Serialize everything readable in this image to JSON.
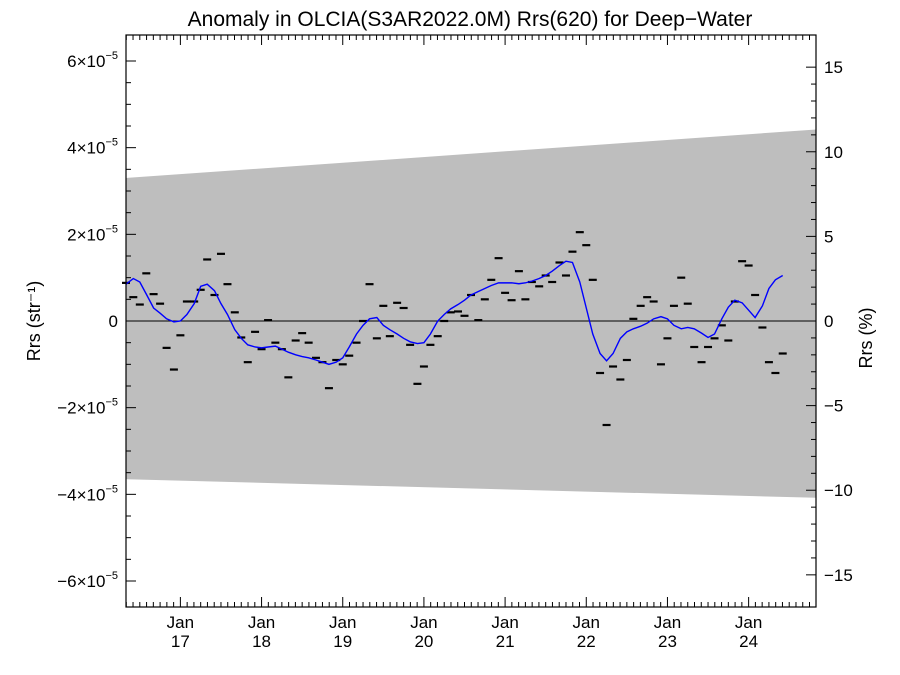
{
  "chart_data": {
    "type": "scatter",
    "title": "Anomaly in OLCIA(S3AR2022.0M) Rrs(620) for Deep−Water",
    "ylabel_left": "Rrs (str⁻¹)",
    "ylabel_right": "Rrs (%)",
    "xlim": [
      2016.33,
      2024.83
    ],
    "ylim": [
      -6.6e-05,
      6.6e-05
    ],
    "ylim_right": [
      -16.9,
      16.9
    ],
    "x_ticks": [
      {
        "x": 2017.0,
        "line1": "Jan",
        "line2": "17"
      },
      {
        "x": 2018.0,
        "line1": "Jan",
        "line2": "18"
      },
      {
        "x": 2019.0,
        "line1": "Jan",
        "line2": "19"
      },
      {
        "x": 2020.0,
        "line1": "Jan",
        "line2": "20"
      },
      {
        "x": 2021.0,
        "line1": "Jan",
        "line2": "21"
      },
      {
        "x": 2022.0,
        "line1": "Jan",
        "line2": "22"
      },
      {
        "x": 2023.0,
        "line1": "Jan",
        "line2": "23"
      },
      {
        "x": 2024.0,
        "line1": "Jan",
        "line2": "24"
      }
    ],
    "y_ticks_left": [
      {
        "value": 6e-05,
        "mant": "6×10",
        "exp": "−5"
      },
      {
        "value": 4e-05,
        "mant": "4×10",
        "exp": "−5"
      },
      {
        "value": 2e-05,
        "mant": "2×10",
        "exp": "−5"
      },
      {
        "value": 0,
        "mant": "0",
        "exp": ""
      },
      {
        "value": -2e-05,
        "mant": "−2×10",
        "exp": "−5"
      },
      {
        "value": -4e-05,
        "mant": "−4×10",
        "exp": "−5"
      },
      {
        "value": -6e-05,
        "mant": "−6×10",
        "exp": "−5"
      }
    ],
    "y_ticks_right": [
      {
        "value": 15,
        "label": "15"
      },
      {
        "value": 10,
        "label": "10"
      },
      {
        "value": 5,
        "label": "5"
      },
      {
        "value": 0,
        "label": "0"
      },
      {
        "value": -5,
        "label": "−5"
      },
      {
        "value": -10,
        "label": "−10"
      },
      {
        "value": -15,
        "label": "−15"
      }
    ],
    "band": {
      "color": "#bebebe",
      "upper": [
        [
          2016.33,
          3.3e-05
        ],
        [
          2024.83,
          4.42e-05
        ]
      ],
      "lower": [
        [
          2016.33,
          -3.65e-05
        ],
        [
          2024.83,
          -4.08e-05
        ]
      ]
    },
    "zero_line": true,
    "series": [
      {
        "kind": "markers",
        "marker": "dash",
        "color": "#000000",
        "points": [
          [
            2016.33,
            8.8e-06
          ],
          [
            2016.42,
            5.5e-06
          ],
          [
            2016.5,
            3.8e-06
          ],
          [
            2016.58,
            1.1e-05
          ],
          [
            2016.67,
            6.2e-06
          ],
          [
            2016.75,
            4e-06
          ],
          [
            2016.83,
            -6.2e-06
          ],
          [
            2016.92,
            -1.12e-05
          ],
          [
            2017.0,
            -3.3e-06
          ],
          [
            2017.08,
            4.5e-06
          ],
          [
            2017.17,
            4.5e-06
          ],
          [
            2017.25,
            7.2e-06
          ],
          [
            2017.33,
            1.42e-05
          ],
          [
            2017.42,
            6e-06
          ],
          [
            2017.5,
            1.55e-05
          ],
          [
            2017.58,
            8.5e-06
          ],
          [
            2017.67,
            2e-06
          ],
          [
            2017.75,
            -3.8e-06
          ],
          [
            2017.83,
            -9.5e-06
          ],
          [
            2017.92,
            -2.5e-06
          ],
          [
            2018.0,
            -6.5e-06
          ],
          [
            2018.08,
            2e-07
          ],
          [
            2018.17,
            -5e-06
          ],
          [
            2018.25,
            -6.5e-06
          ],
          [
            2018.33,
            -1.3e-05
          ],
          [
            2018.42,
            -4.5e-06
          ],
          [
            2018.5,
            -2.8e-06
          ],
          [
            2018.58,
            -5e-06
          ],
          [
            2018.67,
            -8.5e-06
          ],
          [
            2018.75,
            -9.5e-06
          ],
          [
            2018.83,
            -1.55e-05
          ],
          [
            2018.92,
            -9e-06
          ],
          [
            2019.0,
            -1e-05
          ],
          [
            2019.08,
            -8e-06
          ],
          [
            2019.17,
            -5e-06
          ],
          [
            2019.25,
            0.0
          ],
          [
            2019.33,
            8.5e-06
          ],
          [
            2019.42,
            -4e-06
          ],
          [
            2019.5,
            3.5e-06
          ],
          [
            2019.58,
            -3.5e-06
          ],
          [
            2019.67,
            4.2e-06
          ],
          [
            2019.75,
            3e-06
          ],
          [
            2019.83,
            -5.5e-06
          ],
          [
            2019.92,
            -1.45e-05
          ],
          [
            2020.0,
            -1.05e-05
          ],
          [
            2020.08,
            -5.5e-06
          ],
          [
            2020.17,
            -3.5e-06
          ],
          [
            2020.25,
            0.0
          ],
          [
            2020.33,
            2e-06
          ],
          [
            2020.42,
            2.2e-06
          ],
          [
            2020.5,
            1.2e-06
          ],
          [
            2020.58,
            6e-06
          ],
          [
            2020.67,
            2e-07
          ],
          [
            2020.75,
            5e-06
          ],
          [
            2020.83,
            9.5e-06
          ],
          [
            2020.92,
            1.45e-05
          ],
          [
            2021.0,
            6.5e-06
          ],
          [
            2021.08,
            4.8e-06
          ],
          [
            2021.17,
            1.15e-05
          ],
          [
            2021.25,
            5e-06
          ],
          [
            2021.33,
            9e-06
          ],
          [
            2021.42,
            8e-06
          ],
          [
            2021.5,
            1.05e-05
          ],
          [
            2021.58,
            9e-06
          ],
          [
            2021.67,
            1.35e-05
          ],
          [
            2021.75,
            1.05e-05
          ],
          [
            2021.83,
            1.6e-05
          ],
          [
            2021.92,
            2.05e-05
          ],
          [
            2022.0,
            1.75e-05
          ],
          [
            2022.08,
            9.5e-06
          ],
          [
            2022.17,
            -1.2e-05
          ],
          [
            2022.25,
            -2.4e-05
          ],
          [
            2022.33,
            -1.05e-05
          ],
          [
            2022.42,
            -1.35e-05
          ],
          [
            2022.5,
            -9e-06
          ],
          [
            2022.58,
            5e-07
          ],
          [
            2022.67,
            3.5e-06
          ],
          [
            2022.75,
            5.5e-06
          ],
          [
            2022.83,
            4.5e-06
          ],
          [
            2022.92,
            -1e-05
          ],
          [
            2023.0,
            -4e-06
          ],
          [
            2023.08,
            3.5e-06
          ],
          [
            2023.17,
            1e-05
          ],
          [
            2023.25,
            4e-06
          ],
          [
            2023.33,
            -6e-06
          ],
          [
            2023.42,
            -9.5e-06
          ],
          [
            2023.5,
            -6e-06
          ],
          [
            2023.58,
            -4e-06
          ],
          [
            2023.67,
            -1e-06
          ],
          [
            2023.75,
            -4.5e-06
          ],
          [
            2023.83,
            4.5e-06
          ],
          [
            2023.92,
            1.38e-05
          ],
          [
            2024.0,
            1.28e-05
          ],
          [
            2024.08,
            6e-06
          ],
          [
            2024.17,
            -1.5e-06
          ],
          [
            2024.25,
            -9.5e-06
          ],
          [
            2024.33,
            -1.2e-05
          ],
          [
            2024.42,
            -7.5e-06
          ]
        ]
      },
      {
        "kind": "line",
        "color": "#0000ff",
        "points": [
          [
            2016.33,
            8.5e-06
          ],
          [
            2016.42,
            9.8e-06
          ],
          [
            2016.5,
            9e-06
          ],
          [
            2016.58,
            6.2e-06
          ],
          [
            2016.67,
            3e-06
          ],
          [
            2016.75,
            1.8e-06
          ],
          [
            2016.83,
            5e-07
          ],
          [
            2016.92,
            -2e-07
          ],
          [
            2017.0,
            0.0
          ],
          [
            2017.08,
            1.5e-06
          ],
          [
            2017.17,
            4e-06
          ],
          [
            2017.25,
            8e-06
          ],
          [
            2017.33,
            8.5e-06
          ],
          [
            2017.42,
            7e-06
          ],
          [
            2017.5,
            4e-06
          ],
          [
            2017.58,
            1.5e-06
          ],
          [
            2017.67,
            -2e-06
          ],
          [
            2017.75,
            -4e-06
          ],
          [
            2017.83,
            -5.5e-06
          ],
          [
            2017.92,
            -6e-06
          ],
          [
            2018.0,
            -6.2e-06
          ],
          [
            2018.08,
            -6e-06
          ],
          [
            2018.17,
            -5.8e-06
          ],
          [
            2018.25,
            -6.5e-06
          ],
          [
            2018.33,
            -7.2e-06
          ],
          [
            2018.42,
            -7.8e-06
          ],
          [
            2018.5,
            -8.2e-06
          ],
          [
            2018.58,
            -8.5e-06
          ],
          [
            2018.67,
            -9e-06
          ],
          [
            2018.75,
            -9.5e-06
          ],
          [
            2018.83,
            -1e-05
          ],
          [
            2018.92,
            -9.5e-06
          ],
          [
            2019.0,
            -8.5e-06
          ],
          [
            2019.08,
            -6e-06
          ],
          [
            2019.17,
            -3e-06
          ],
          [
            2019.25,
            -1e-06
          ],
          [
            2019.33,
            5e-07
          ],
          [
            2019.42,
            8e-07
          ],
          [
            2019.5,
            -1e-06
          ],
          [
            2019.58,
            -2e-06
          ],
          [
            2019.67,
            -3e-06
          ],
          [
            2019.75,
            -4e-06
          ],
          [
            2019.83,
            -4.8e-06
          ],
          [
            2019.92,
            -5.2e-06
          ],
          [
            2020.0,
            -5e-06
          ],
          [
            2020.08,
            -3e-06
          ],
          [
            2020.17,
            0.0
          ],
          [
            2020.25,
            1.5e-06
          ],
          [
            2020.33,
            2.8e-06
          ],
          [
            2020.42,
            3.8e-06
          ],
          [
            2020.5,
            4.8e-06
          ],
          [
            2020.58,
            6e-06
          ],
          [
            2020.67,
            6.8e-06
          ],
          [
            2020.75,
            7.5e-06
          ],
          [
            2020.83,
            8.2e-06
          ],
          [
            2020.92,
            8.8e-06
          ],
          [
            2021.0,
            8.8e-06
          ],
          [
            2021.08,
            8.8e-06
          ],
          [
            2021.17,
            8.6e-06
          ],
          [
            2021.25,
            8.8e-06
          ],
          [
            2021.33,
            9.2e-06
          ],
          [
            2021.42,
            9.8e-06
          ],
          [
            2021.5,
            1.05e-05
          ],
          [
            2021.58,
            1.15e-05
          ],
          [
            2021.67,
            1.28e-05
          ],
          [
            2021.75,
            1.38e-05
          ],
          [
            2021.83,
            1.35e-05
          ],
          [
            2021.92,
            9e-06
          ],
          [
            2022.0,
            3e-06
          ],
          [
            2022.08,
            -3e-06
          ],
          [
            2022.17,
            -7.5e-06
          ],
          [
            2022.25,
            -9.2e-06
          ],
          [
            2022.33,
            -7.5e-06
          ],
          [
            2022.42,
            -4e-06
          ],
          [
            2022.5,
            -2.5e-06
          ],
          [
            2022.58,
            -1.8e-06
          ],
          [
            2022.67,
            -1.2e-06
          ],
          [
            2022.75,
            -5e-07
          ],
          [
            2022.83,
            5e-07
          ],
          [
            2022.92,
            1e-06
          ],
          [
            2023.0,
            5e-07
          ],
          [
            2023.08,
            -1e-06
          ],
          [
            2023.17,
            -1.8e-06
          ],
          [
            2023.25,
            -1.5e-06
          ],
          [
            2023.33,
            -1.8e-06
          ],
          [
            2023.42,
            -2.8e-06
          ],
          [
            2023.5,
            -3.8e-06
          ],
          [
            2023.58,
            -3e-06
          ],
          [
            2023.67,
            5e-07
          ],
          [
            2023.75,
            3.2e-06
          ],
          [
            2023.83,
            4.8e-06
          ],
          [
            2023.92,
            4.2e-06
          ],
          [
            2024.0,
            2.5e-06
          ],
          [
            2024.08,
            8e-07
          ],
          [
            2024.17,
            3.5e-06
          ],
          [
            2024.25,
            7.5e-06
          ],
          [
            2024.33,
            9.5e-06
          ],
          [
            2024.42,
            1.05e-05
          ]
        ]
      }
    ],
    "grid": false,
    "legend": "none"
  }
}
